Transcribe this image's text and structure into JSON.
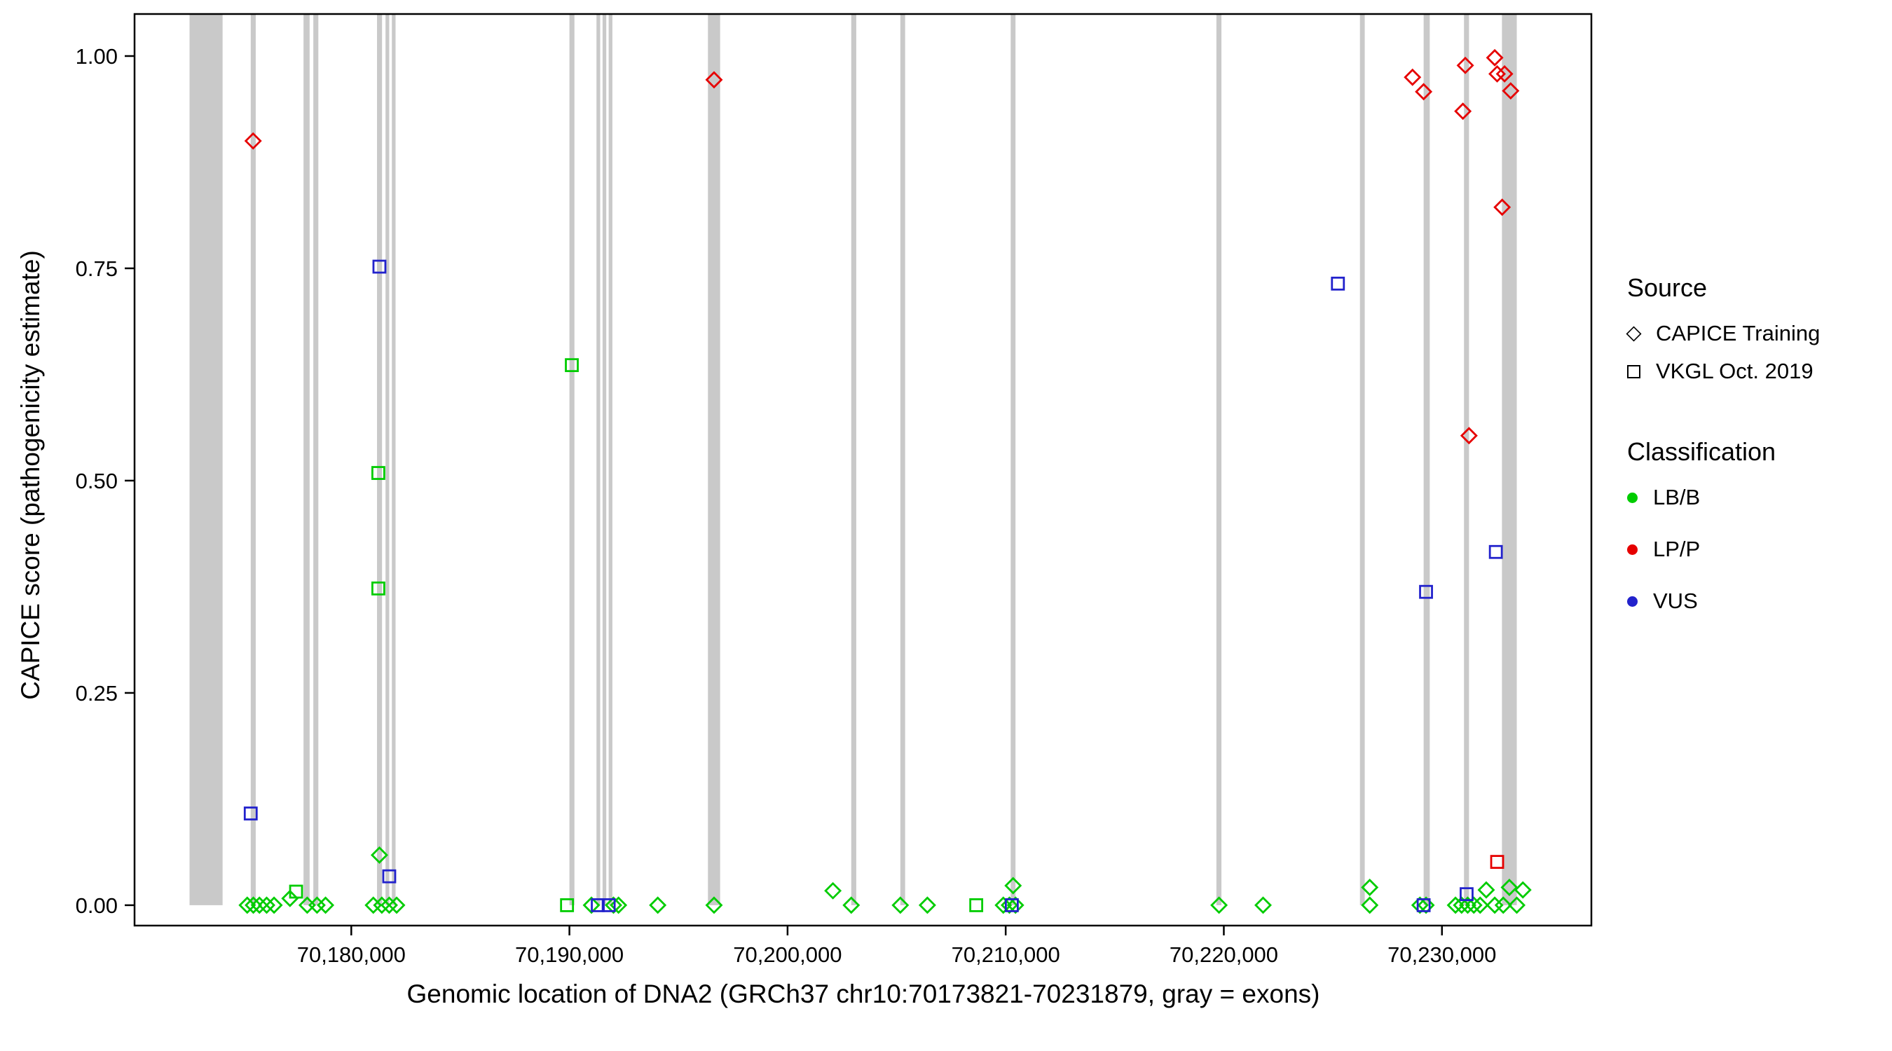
{
  "figure": {
    "x_title": "Genomic location of DNA2 (GRCh37 chr10:70173821-70231879, gray = exons)",
    "y_title": "CAPICE score (pathogenicity estimate)"
  },
  "legend": {
    "source": {
      "title": "Source",
      "items": [
        {
          "label": "CAPICE Training",
          "shape": "diamond"
        },
        {
          "label": "VKGL Oct. 2019",
          "shape": "square"
        }
      ]
    },
    "classification": {
      "title": "Classification",
      "items": [
        {
          "label": "LB/B",
          "color": "#00cc00"
        },
        {
          "label": "LP/P",
          "color": "#e60000"
        },
        {
          "label": "VUS",
          "color": "#2222cc"
        }
      ]
    }
  },
  "chart_data": {
    "type": "scatter",
    "title": "",
    "xlabel": "Genomic location of DNA2 (GRCh37 chr10:70173821-70231879, gray = exons)",
    "ylabel": "CAPICE score (pathogenicity estimate)",
    "xlim": [
      70170064,
      70236850
    ],
    "ylim": [
      -0.024,
      1.0495
    ],
    "grid": false,
    "legend_position": "right",
    "x_ticks": [
      {
        "value": 70180000,
        "label": "70,180,000"
      },
      {
        "value": 70190000,
        "label": "70,190,000"
      },
      {
        "value": 70200000,
        "label": "70,200,000"
      },
      {
        "value": 70210000,
        "label": "70,210,000"
      },
      {
        "value": 70220000,
        "label": "70,220,000"
      },
      {
        "value": 70230000,
        "label": "70,230,000"
      }
    ],
    "y_ticks": [
      {
        "value": 0.0,
        "label": "0.00"
      },
      {
        "value": 0.25,
        "label": "0.25"
      },
      {
        "value": 0.5,
        "label": "0.50"
      },
      {
        "value": 0.75,
        "label": "0.75"
      },
      {
        "value": 1.0,
        "label": "1.00"
      }
    ],
    "colors": {
      "LB/B": "#00cc00",
      "LP/P": "#e60000",
      "VUS": "#2222cc",
      "exon": "#c9c9c9",
      "axis": "#000000"
    },
    "exons": [
      [
        70172585,
        70174100
      ],
      [
        70175390,
        70175620
      ],
      [
        70177810,
        70178090
      ],
      [
        70178260,
        70178490
      ],
      [
        70181180,
        70181410
      ],
      [
        70181570,
        70181740
      ],
      [
        70181860,
        70182030
      ],
      [
        70190000,
        70190230
      ],
      [
        70191240,
        70191410
      ],
      [
        70191520,
        70191690
      ],
      [
        70191800,
        70191970
      ],
      [
        70196350,
        70196910
      ],
      [
        70202920,
        70203150
      ],
      [
        70205170,
        70205390
      ],
      [
        70210230,
        70210450
      ],
      [
        70219660,
        70219890
      ],
      [
        70226240,
        70226460
      ],
      [
        70229160,
        70229440
      ],
      [
        70231010,
        70231240
      ],
      [
        70232750,
        70233430
      ]
    ],
    "series": [
      {
        "name": "CAPICE Training",
        "shape": "diamond",
        "points": [
          {
            "x": 70175500,
            "y": 0.9,
            "class": "LP/P"
          },
          {
            "x": 70196630,
            "y": 0.972,
            "class": "LP/P"
          },
          {
            "x": 70228650,
            "y": 0.975,
            "class": "LP/P"
          },
          {
            "x": 70229160,
            "y": 0.958,
            "class": "LP/P"
          },
          {
            "x": 70230960,
            "y": 0.935,
            "class": "LP/P"
          },
          {
            "x": 70231070,
            "y": 0.989,
            "class": "LP/P"
          },
          {
            "x": 70231240,
            "y": 0.553,
            "class": "LP/P"
          },
          {
            "x": 70232420,
            "y": 0.998,
            "class": "LP/P"
          },
          {
            "x": 70232530,
            "y": 0.979,
            "class": "LP/P"
          },
          {
            "x": 70232870,
            "y": 0.979,
            "class": "LP/P"
          },
          {
            "x": 70233150,
            "y": 0.959,
            "class": "LP/P"
          },
          {
            "x": 70232760,
            "y": 0.822,
            "class": "LP/P"
          },
          {
            "x": 70175230,
            "y": 0,
            "class": "LB/B"
          },
          {
            "x": 70175510,
            "y": 0,
            "class": "LB/B"
          },
          {
            "x": 70175790,
            "y": 0,
            "class": "LB/B"
          },
          {
            "x": 70176120,
            "y": 0,
            "class": "LB/B"
          },
          {
            "x": 70176460,
            "y": 0,
            "class": "LB/B"
          },
          {
            "x": 70177190,
            "y": 0.008,
            "class": "LB/B"
          },
          {
            "x": 70177980,
            "y": 0,
            "class": "LB/B"
          },
          {
            "x": 70178430,
            "y": 0,
            "class": "LB/B"
          },
          {
            "x": 70178820,
            "y": 0,
            "class": "LB/B"
          },
          {
            "x": 70181010,
            "y": 0,
            "class": "LB/B"
          },
          {
            "x": 70181290,
            "y": 0.059,
            "class": "LB/B"
          },
          {
            "x": 70181400,
            "y": 0,
            "class": "LB/B"
          },
          {
            "x": 70181740,
            "y": 0,
            "class": "LB/B"
          },
          {
            "x": 70182080,
            "y": 0,
            "class": "LB/B"
          },
          {
            "x": 70191010,
            "y": 0,
            "class": "LB/B"
          },
          {
            "x": 70192020,
            "y": 0,
            "class": "LB/B"
          },
          {
            "x": 70192250,
            "y": 0,
            "class": "LB/B"
          },
          {
            "x": 70194050,
            "y": 0,
            "class": "LB/B"
          },
          {
            "x": 70196630,
            "y": 0,
            "class": "LB/B"
          },
          {
            "x": 70202080,
            "y": 0.017,
            "class": "LB/B"
          },
          {
            "x": 70202920,
            "y": 0,
            "class": "LB/B"
          },
          {
            "x": 70205170,
            "y": 0,
            "class": "LB/B"
          },
          {
            "x": 70206410,
            "y": 0,
            "class": "LB/B"
          },
          {
            "x": 70209890,
            "y": 0,
            "class": "LB/B"
          },
          {
            "x": 70210170,
            "y": 0,
            "class": "LB/B"
          },
          {
            "x": 70210340,
            "y": 0.023,
            "class": "LB/B"
          },
          {
            "x": 70210450,
            "y": 0,
            "class": "LB/B"
          },
          {
            "x": 70219780,
            "y": 0,
            "class": "LB/B"
          },
          {
            "x": 70221800,
            "y": 0,
            "class": "LB/B"
          },
          {
            "x": 70226690,
            "y": 0.021,
            "class": "LB/B"
          },
          {
            "x": 70226690,
            "y": 0,
            "class": "LB/B"
          },
          {
            "x": 70228990,
            "y": 0,
            "class": "LB/B"
          },
          {
            "x": 70229270,
            "y": 0,
            "class": "LB/B"
          },
          {
            "x": 70230620,
            "y": 0,
            "class": "LB/B"
          },
          {
            "x": 70230900,
            "y": 0,
            "class": "LB/B"
          },
          {
            "x": 70231180,
            "y": 0,
            "class": "LB/B"
          },
          {
            "x": 70231460,
            "y": 0,
            "class": "LB/B"
          },
          {
            "x": 70231750,
            "y": 0,
            "class": "LB/B"
          },
          {
            "x": 70232030,
            "y": 0.018,
            "class": "LB/B"
          },
          {
            "x": 70232420,
            "y": 0,
            "class": "LB/B"
          },
          {
            "x": 70232810,
            "y": 0,
            "class": "LB/B"
          },
          {
            "x": 70233090,
            "y": 0.021,
            "class": "LB/B"
          },
          {
            "x": 70233430,
            "y": 0,
            "class": "LB/B"
          },
          {
            "x": 70233710,
            "y": 0.018,
            "class": "LB/B"
          }
        ]
      },
      {
        "name": "VKGL Oct. 2019",
        "shape": "square",
        "points": [
          {
            "x": 70232530,
            "y": 0.051,
            "class": "LP/P"
          },
          {
            "x": 70190110,
            "y": 0.636,
            "class": "LB/B"
          },
          {
            "x": 70181240,
            "y": 0.509,
            "class": "LB/B"
          },
          {
            "x": 70181240,
            "y": 0.373,
            "class": "LB/B"
          },
          {
            "x": 70177470,
            "y": 0.016,
            "class": "LB/B"
          },
          {
            "x": 70189890,
            "y": 0,
            "class": "LB/B"
          },
          {
            "x": 70208650,
            "y": 0,
            "class": "LB/B"
          },
          {
            "x": 70175390,
            "y": 0.108,
            "class": "VUS"
          },
          {
            "x": 70181290,
            "y": 0.752,
            "class": "VUS"
          },
          {
            "x": 70181740,
            "y": 0.034,
            "class": "VUS"
          },
          {
            "x": 70191300,
            "y": 0,
            "class": "VUS"
          },
          {
            "x": 70191800,
            "y": 0,
            "class": "VUS"
          },
          {
            "x": 70210280,
            "y": 0,
            "class": "VUS"
          },
          {
            "x": 70225230,
            "y": 0.732,
            "class": "VUS"
          },
          {
            "x": 70229160,
            "y": 0,
            "class": "VUS"
          },
          {
            "x": 70229270,
            "y": 0.369,
            "class": "VUS"
          },
          {
            "x": 70231130,
            "y": 0.013,
            "class": "VUS"
          },
          {
            "x": 70232470,
            "y": 0.416,
            "class": "VUS"
          }
        ]
      }
    ]
  }
}
